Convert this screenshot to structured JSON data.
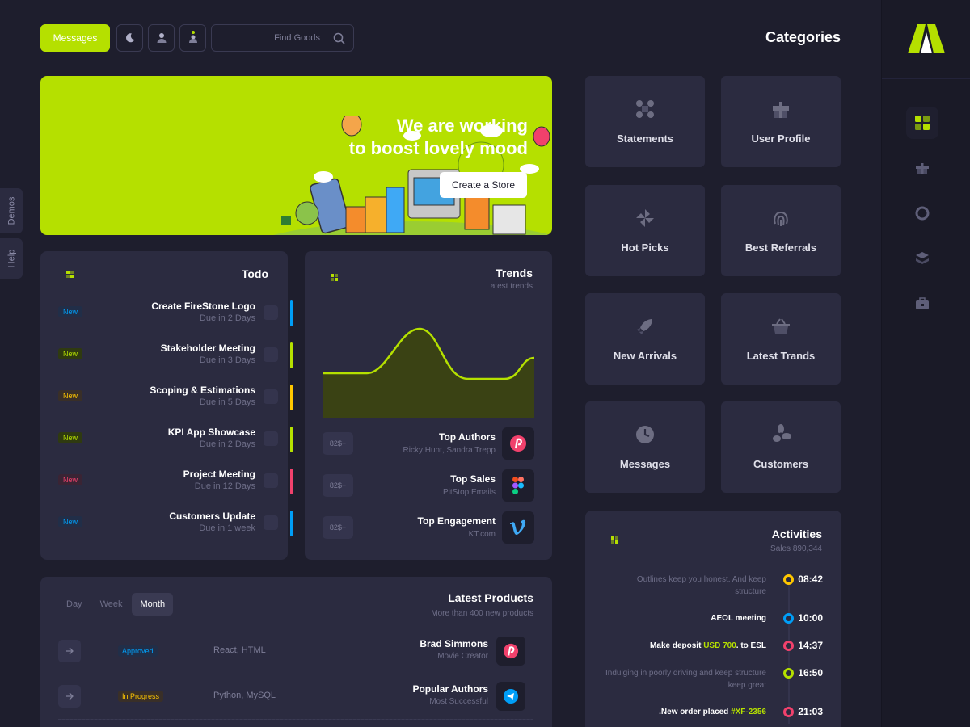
{
  "toolbar": {
    "messages_label": "Messages",
    "search_placeholder": "Find Goods",
    "icons": [
      "moon-icon",
      "user-icon",
      "notification-icon",
      "search-icon"
    ]
  },
  "sidetabs": {
    "demos": "Demos",
    "help": "Help"
  },
  "hero": {
    "title_line1": "We are working",
    "title_line2": "to boost lovely mood",
    "button": "Create a Store",
    "accent": "#b5e000"
  },
  "todo": {
    "title": "Todo",
    "items": [
      {
        "badge": "New",
        "name": "Create FireStone Logo",
        "due": "Due in 2 Days",
        "color": "#009ef7"
      },
      {
        "badge": "New",
        "name": "Stakeholder Meeting",
        "due": "Due in 3 Days",
        "color": "#b5e000"
      },
      {
        "badge": "New",
        "name": "Scoping & Estimations",
        "due": "Due in 5 Days",
        "color": "#ffc700"
      },
      {
        "badge": "New",
        "name": "KPI App Showcase",
        "due": "Due in 2 Days",
        "color": "#b5e000"
      },
      {
        "badge": "New",
        "name": "Project Meeting",
        "due": "Due in 12 Days",
        "color": "#f1416c"
      },
      {
        "badge": "New",
        "name": "Customers Update",
        "due": "Due in 1 week",
        "color": "#009ef7"
      }
    ]
  },
  "trends": {
    "title": "Trends",
    "subtitle": "Latest trends",
    "items": [
      {
        "price": "82$+",
        "name": "Top Authors",
        "desc": "Ricky Hunt, Sandra Trepp",
        "logo": "pinterest-logo-icon"
      },
      {
        "price": "82$+",
        "name": "Top Sales",
        "desc": "PitStop Emails",
        "logo": "figma-logo-icon"
      },
      {
        "price": "82$+",
        "name": "Top Engagement",
        "desc": "KT.com",
        "logo": "vimeo-logo-icon"
      }
    ]
  },
  "categories": {
    "title": "Categories",
    "items": [
      {
        "label": "Statements",
        "icon": "statements-icon"
      },
      {
        "label": "User Profile",
        "icon": "gift-icon"
      },
      {
        "label": "Hot Picks",
        "icon": "pinwheel-icon"
      },
      {
        "label": "Best Referrals",
        "icon": "fingerprint-icon"
      },
      {
        "label": "New Arrivals",
        "icon": "rocket-icon"
      },
      {
        "label": "Latest Trands",
        "icon": "basket-icon"
      },
      {
        "label": "Messages",
        "icon": "clock-icon"
      },
      {
        "label": "Customers",
        "icon": "fan-icon"
      }
    ]
  },
  "activities": {
    "title": "Activities",
    "subtitle": "Sales 890,344",
    "items": [
      {
        "text": "Outlines keep you honest. And keep structure",
        "time": "08:42",
        "color": "#ffc700"
      },
      {
        "text": "AEOL meeting",
        "time": "10:00",
        "color": "#009ef7"
      },
      {
        "text_pre": "Make deposit ",
        "text_hl": "USD 700",
        "text_post": ". to ESL",
        "time": "14:37",
        "color": "#f1416c"
      },
      {
        "text": "Indulging in poorly driving and keep structure keep great",
        "time": "16:50",
        "color": "#b5e000"
      },
      {
        "text_pre": ".New order placed ",
        "text_hl": "#XF-2356",
        "time": "21:03",
        "color": "#f1416c"
      }
    ]
  },
  "products": {
    "title": "Latest Products",
    "subtitle": "More than 400 new products",
    "tabs": [
      "Day",
      "Week",
      "Month"
    ],
    "active_tab": "Month",
    "items": [
      {
        "status": "Approved",
        "tech": "React, HTML",
        "name": "Brad Simmons",
        "desc": "Movie Creator",
        "logo": "pinterest-logo-icon"
      },
      {
        "status": "In Progress",
        "tech": "Python, MySQL",
        "name": "Popular Authors",
        "desc": "Most Successful",
        "logo": "telegram-logo-icon"
      }
    ]
  },
  "aside": {
    "menu_icons": [
      "dashboard-icon",
      "gift-icon",
      "lifebuoy-icon",
      "layers-icon",
      "briefcase-icon"
    ]
  }
}
